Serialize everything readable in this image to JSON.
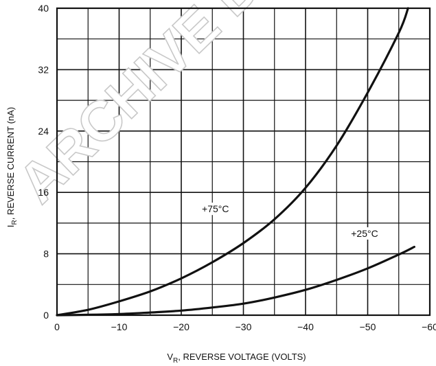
{
  "watermark": "ARCHIVE D",
  "chart_data": {
    "type": "line",
    "xlabel_main": "V",
    "xlabel_sub": "R",
    "xlabel_rest": ", REVERSE VOLTAGE (VOLTS)",
    "ylabel_main": "I",
    "ylabel_sub": "R",
    "ylabel_rest": ", REVERSE CURRENT (nA)",
    "xlim": [
      0,
      -60
    ],
    "ylim": [
      0,
      40
    ],
    "x_ticks": [
      0,
      -10,
      -20,
      -30,
      -40,
      -50,
      -60
    ],
    "x_tick_labels": [
      "0",
      "−10",
      "−20",
      "−30",
      "−40",
      "−50",
      "−60"
    ],
    "y_ticks": [
      0,
      8,
      16,
      24,
      32,
      40
    ],
    "y_tick_labels": [
      "0",
      "8",
      "16",
      "24",
      "32",
      "40"
    ],
    "grid": true,
    "series": [
      {
        "name": "+75°C",
        "x": [
          0,
          -5,
          -10,
          -15,
          -20,
          -25,
          -30,
          -35,
          -40,
          -45,
          -50,
          -55,
          -56.5
        ],
        "y": [
          0,
          0.7,
          1.8,
          3.1,
          4.8,
          6.9,
          9.4,
          12.5,
          16.6,
          22.1,
          29.0,
          36.8,
          40.0
        ]
      },
      {
        "name": "+25°C",
        "x": [
          0,
          -5,
          -10,
          -15,
          -20,
          -25,
          -30,
          -35,
          -40,
          -45,
          -50,
          -55,
          -57.5
        ],
        "y": [
          0,
          0.05,
          0.15,
          0.35,
          0.6,
          1.0,
          1.5,
          2.3,
          3.3,
          4.6,
          6.1,
          7.9,
          8.9
        ]
      }
    ]
  }
}
